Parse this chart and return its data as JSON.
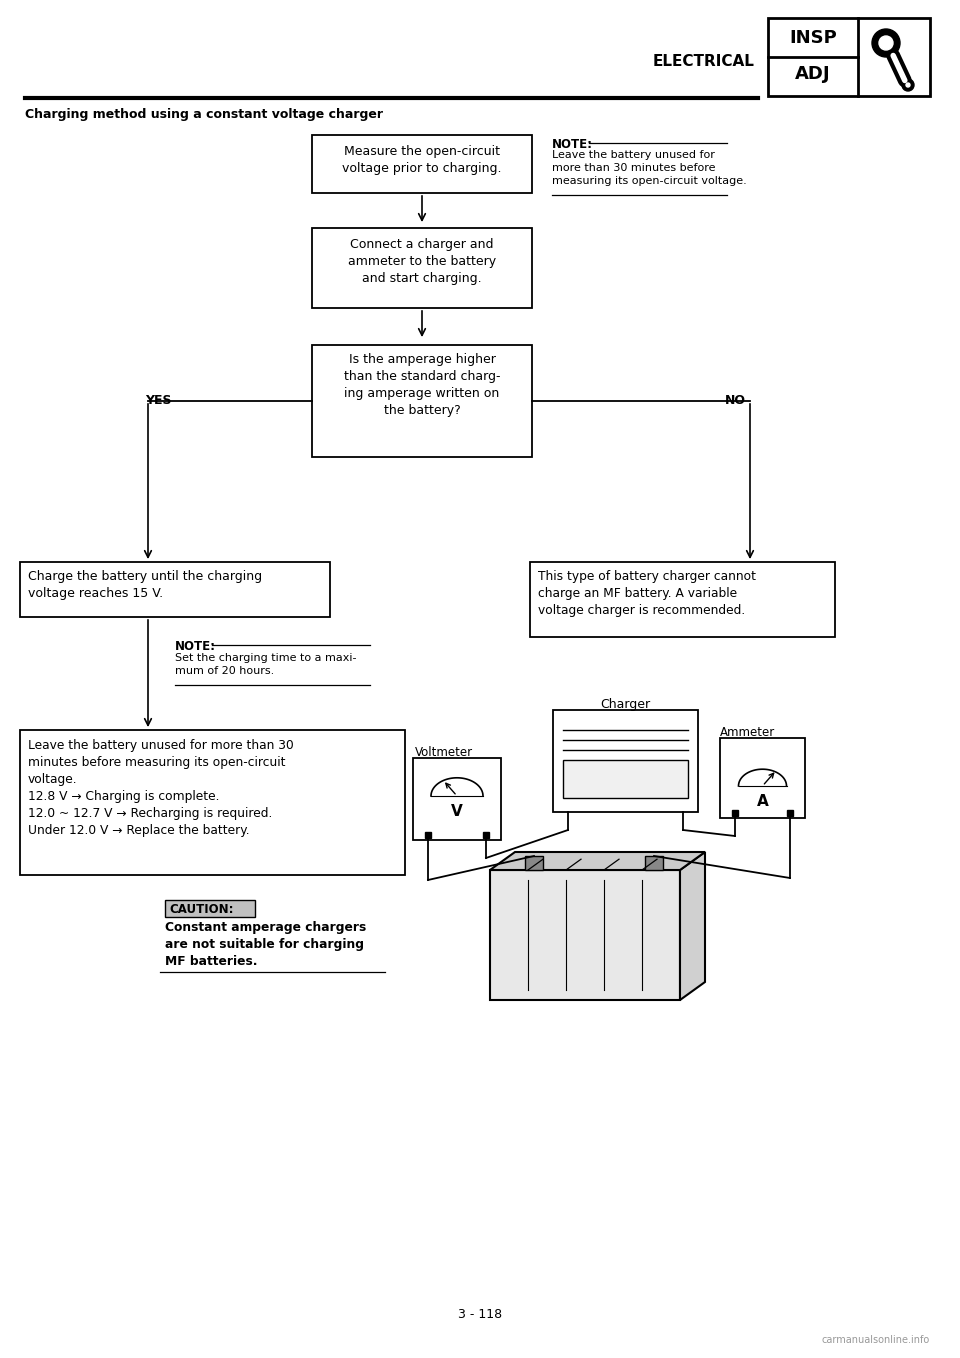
{
  "page_title": "ELECTRICAL",
  "section_title": "Charging method using a constant voltage charger",
  "page_number": "3 - 118",
  "watermark": "carmanualsonline.info",
  "box1_text": "Measure the open-circuit\nvoltage prior to charging.",
  "box2_text": "Connect a charger and\nammeter to the battery\nand start charging.",
  "box3_text": "Is the amperage higher\nthan the standard charg-\ning amperage written on\nthe battery?",
  "box_yes_text": "Charge the battery until the charging\nvoltage reaches 15 V.",
  "box_no_text": "This type of battery charger cannot\ncharge an MF battery. A variable\nvoltage charger is recommended.",
  "box_final_text": "Leave the battery unused for more than 30\nminutes before measuring its open-circuit\nvoltage.\n12.8 V → Charging is complete.\n12.0 ~ 12.7 V → Recharging is required.\nUnder 12.0 V → Replace the battery.",
  "note1_title": "NOTE:",
  "note1_text": "Leave the battery unused for\nmore than 30 minutes before\nmeasuring its open-circuit voltage.",
  "note2_title": "NOTE:",
  "note2_text": "Set the charging time to a maxi-\nmum of 20 hours.",
  "caution_title": "CAUTION:",
  "caution_text": "Constant amperage chargers\nare not suitable for charging\nMF batteries.",
  "charger_label": "Charger",
  "voltmeter_label": "Voltmeter",
  "ammeter_label": "Ammeter",
  "yes_label": "YES",
  "no_label": "NO",
  "bg_color": "#ffffff",
  "box_edge_color": "#000000",
  "text_color": "#000000",
  "line_color": "#000000"
}
